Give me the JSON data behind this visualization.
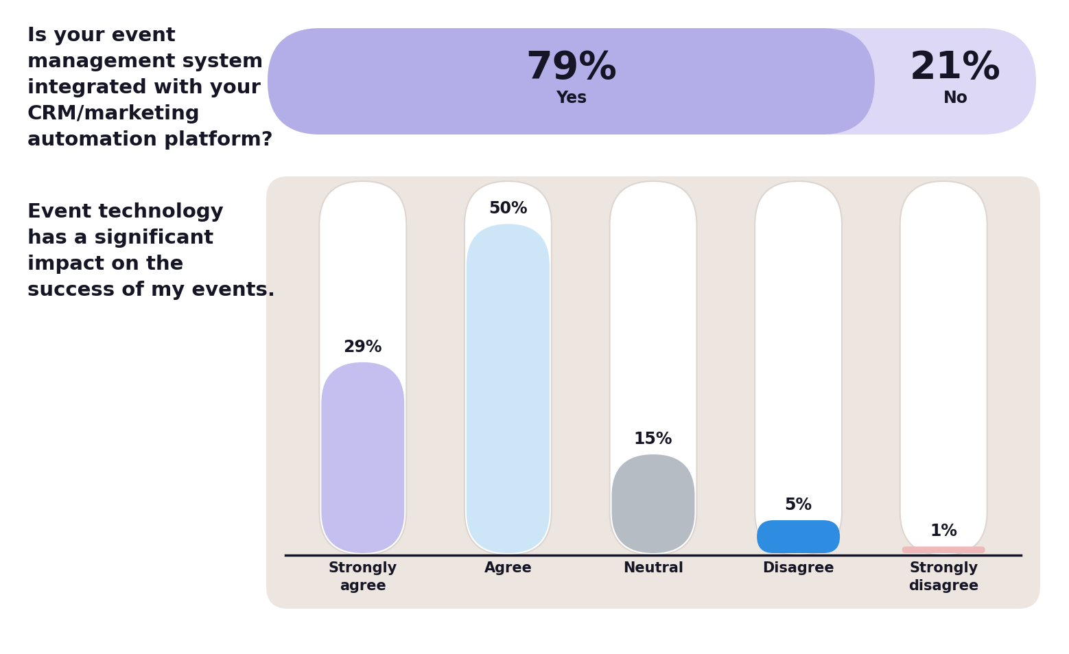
{
  "background_color": "#ffffff",
  "top_question": "Is your event\nmanagement system\nintegrated with your\nCRM/marketing\nautomation platform?",
  "top_yes_pct": "79%",
  "top_no_pct": "21%",
  "top_yes_label": "Yes",
  "top_no_label": "No",
  "top_yes_color": "#b3aee8",
  "top_no_color": "#ddd8f5",
  "bottom_question": "Event technology\nhas a significant\nimpact on the\nsuccess of my events.",
  "bar_categories": [
    "Strongly\nagree",
    "Agree",
    "Neutral",
    "Disagree",
    "Strongly\ndisagree"
  ],
  "bar_values": [
    29,
    50,
    15,
    5,
    1
  ],
  "bar_labels": [
    "29%",
    "50%",
    "15%",
    "5%",
    "1%"
  ],
  "bar_colors": [
    "#c5bff0",
    "#cce5f7",
    "#b5bcc4",
    "#2e8de0",
    "#f0b8b8"
  ],
  "bar_bg_color": "#ede5e0",
  "bar_tunnel_color": "#ffffff",
  "bar_tunnel_border": "#ddd5cf",
  "text_color": "#151525",
  "title_fontsize": 21,
  "pct_fontsize": 40,
  "sublabel_fontsize": 17,
  "bar_label_fontsize": 17,
  "bar_tick_fontsize": 15
}
